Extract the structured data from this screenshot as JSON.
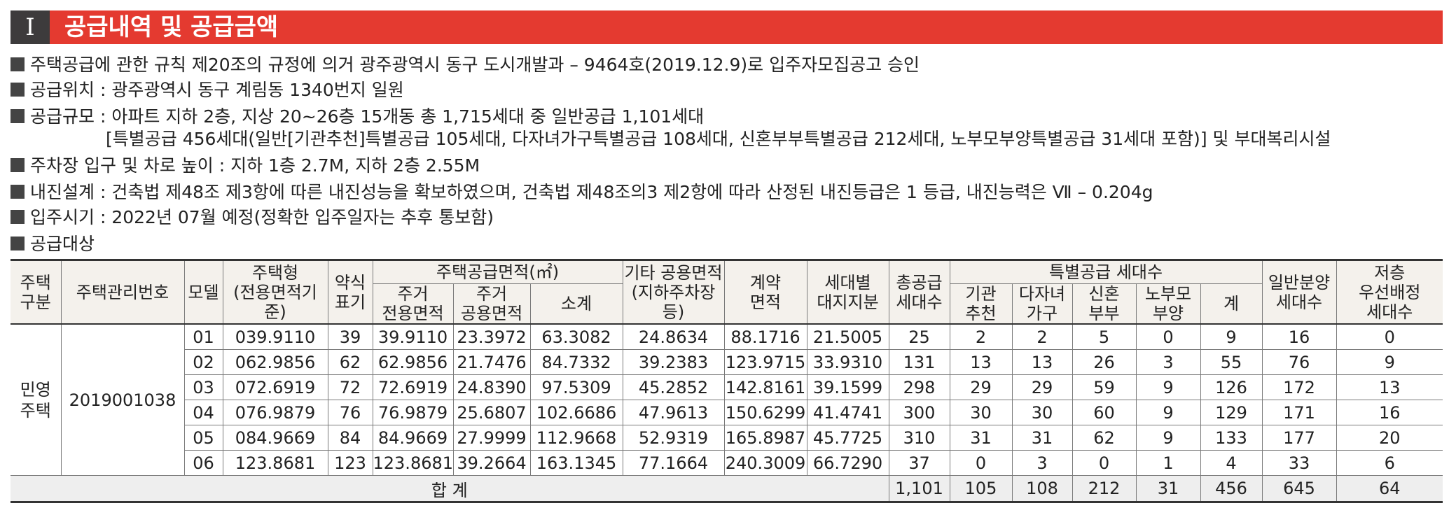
{
  "header": {
    "section_number": "I",
    "title": "공급내역 및 공급금액"
  },
  "info_lines": [
    "주택공급에 관한 규칙 제20조의 규정에 의거 광주광역시 동구 도시개발과 – 9464호(2019.12.9)로 입주자모집공고 승인",
    "공급위치 : 광주광역시 동구 계림동 1340번지 일원",
    "공급규모 : 아파트 지하 2층, 지상 20~26층 15개동 총 1,715세대 중 일반공급 1,101세대",
    "주차장 입구 및 차로 높이 : 지하 1층 2.7M, 지하 2층 2.55M",
    "내진설계 : 건축법 제48조 제3항에 따른 내진성능을 확보하였으며, 건축법 제48조의3 제2항에 따라 산정된 내진등급은 1 등급, 내진능력은 Ⅶ – 0.204g",
    "입주시기 : 2022년 07월 예정(정확한 입주일자는 추후 통보함)",
    "공급대상"
  ],
  "scale_detail": "[특별공급 456세대(일반[기관추천]특별공급 105세대, 다자녀가구특별공급 108세대, 신혼부부특별공급 212세대, 노부모부양특별공급 31세대 포함)] 및 부대복리시설",
  "table": {
    "headers": {
      "housing_type": "주택\n구분",
      "mgmt_no": "주택관리번호",
      "model": "모델",
      "house_type": "주택형\n(전용면적기준)",
      "abbr": "약식\n표기",
      "area_group": "주택공급면적(㎡)",
      "exclusive": "주거\n전용면적",
      "common": "주거\n공용면적",
      "subtotal": "소계",
      "other_common": "기타 공용면적\n(지하주차장등)",
      "contract": "계약\n면적",
      "land_share": "세대별\n대지지분",
      "total_supply": "총공급\n세대수",
      "special_group": "특별공급 세대수",
      "institution": "기관\n추천",
      "multi_child": "다자녀\n가구",
      "newlywed": "신혼\n부부",
      "elderly": "노부모\n부양",
      "special_sum": "계",
      "general": "일반분양\n세대수",
      "low_floor": "저층\n우선배정\n세대수"
    },
    "housing_type_value": "민영\n주택",
    "mgmt_no_value": "2019001038",
    "rows": [
      [
        "01",
        "039.9110",
        "39",
        "39.9110",
        "23.3972",
        "63.3082",
        "24.8634",
        "88.1716",
        "21.5005",
        "25",
        "2",
        "2",
        "5",
        "0",
        "9",
        "16",
        "0"
      ],
      [
        "02",
        "062.9856",
        "62",
        "62.9856",
        "21.7476",
        "84.7332",
        "39.2383",
        "123.9715",
        "33.9310",
        "131",
        "13",
        "13",
        "26",
        "3",
        "55",
        "76",
        "9"
      ],
      [
        "03",
        "072.6919",
        "72",
        "72.6919",
        "24.8390",
        "97.5309",
        "45.2852",
        "142.8161",
        "39.1599",
        "298",
        "29",
        "29",
        "59",
        "9",
        "126",
        "172",
        "13"
      ],
      [
        "04",
        "076.9879",
        "76",
        "76.9879",
        "25.6807",
        "102.6686",
        "47.9613",
        "150.6299",
        "41.4741",
        "300",
        "30",
        "30",
        "60",
        "9",
        "129",
        "171",
        "16"
      ],
      [
        "05",
        "084.9669",
        "84",
        "84.9669",
        "27.9999",
        "112.9668",
        "52.9319",
        "165.8987",
        "45.7725",
        "310",
        "31",
        "31",
        "62",
        "9",
        "133",
        "177",
        "20"
      ],
      [
        "06",
        "123.8681",
        "123",
        "123.8681",
        "39.2664",
        "163.1345",
        "77.1664",
        "240.3009",
        "66.7290",
        "37",
        "0",
        "3",
        "0",
        "1",
        "4",
        "33",
        "6"
      ]
    ],
    "total": {
      "label": "합 계",
      "values": [
        "1,101",
        "105",
        "108",
        "212",
        "31",
        "456",
        "645",
        "64"
      ]
    }
  }
}
